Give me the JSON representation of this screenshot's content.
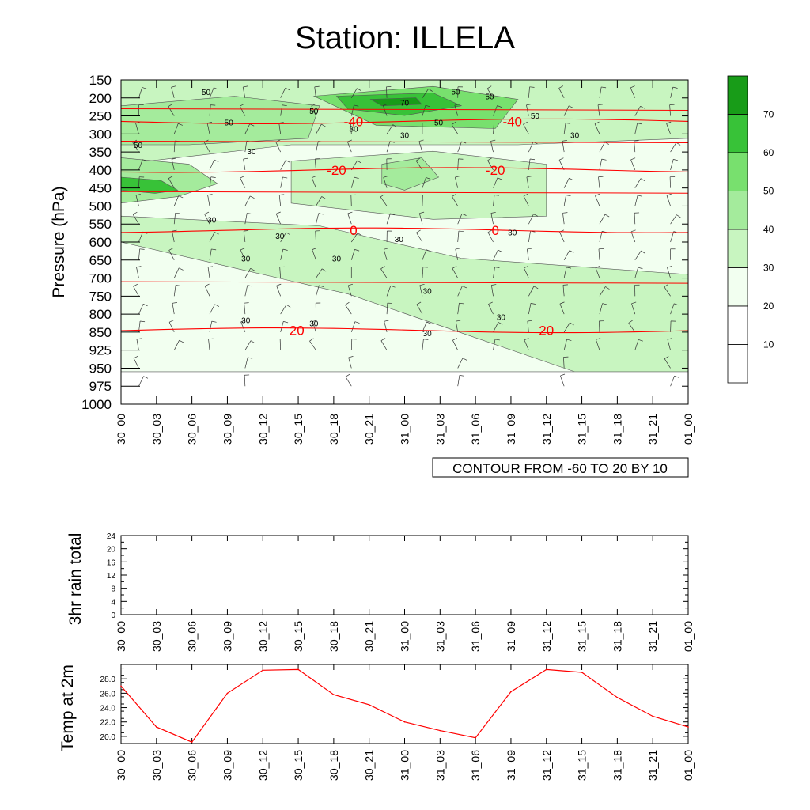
{
  "title": "Station: ILLELA",
  "time_labels": [
    "30_00",
    "30_03",
    "30_06",
    "30_09",
    "30_12",
    "30_15",
    "30_18",
    "30_21",
    "31_00",
    "31_03",
    "31_06",
    "31_09",
    "31_12",
    "31_15",
    "31_18",
    "31_21",
    "01_00"
  ],
  "colors": {
    "greens": [
      "#ffffff",
      "#f2fff0",
      "#c8f5c0",
      "#a4eb9c",
      "#78e06e",
      "#38c238",
      "#189c18"
    ],
    "temp_line": "#ff0000",
    "frame": "#000000"
  },
  "chart_data": [
    {
      "type": "heatmap",
      "name": "upper",
      "ylabel": "Pressure (hPa)",
      "yticks": [
        "150",
        "200",
        "250",
        "300",
        "350",
        "400",
        "450",
        "500",
        "550",
        "600",
        "650",
        "700",
        "750",
        "800",
        "850",
        "925",
        "950",
        "975",
        "1000"
      ],
      "xticks": [
        "30_00",
        "30_03",
        "30_06",
        "30_09",
        "30_12",
        "30_15",
        "30_18",
        "30_21",
        "31_00",
        "31_03",
        "31_06",
        "31_09",
        "31_12",
        "31_15",
        "31_18",
        "31_21",
        "01_00"
      ],
      "colorbar": {
        "labels": [
          "10",
          "20",
          "30",
          "40",
          "50",
          "60",
          "70"
        ],
        "levels": [
          0,
          10,
          20,
          30,
          40,
          50,
          60,
          70,
          80
        ]
      },
      "info_box": "CONTOUR FROM -60 TO 20 BY 10",
      "temperature_contours": [
        {
          "label": "-40",
          "level_index": 2.3,
          "label_positions": [
            0.41,
            0.69
          ]
        },
        {
          "label": "-20",
          "level_index": 5.0,
          "label_positions": [
            0.38,
            0.66
          ]
        },
        {
          "label": "0",
          "level_index": 8.35,
          "label_positions": [
            0.41,
            0.66
          ]
        },
        {
          "label": "20",
          "level_index": 13.9,
          "label_positions": [
            0.31,
            0.75
          ]
        }
      ],
      "wind_contour_labels": [
        "50",
        "50",
        "50",
        "50",
        "50",
        "50",
        "50",
        "50",
        "70",
        "30",
        "30",
        "30",
        "30",
        "30",
        "30",
        "30",
        "30",
        "30",
        "30",
        "30",
        "30",
        "30",
        "30",
        "30"
      ]
    },
    {
      "type": "bar",
      "name": "rain",
      "ylabel": "3hr rain total",
      "yticks": [
        "0",
        "4",
        "8",
        "12",
        "16",
        "20",
        "24"
      ],
      "ylim": [
        0,
        24
      ],
      "categories": [
        "30_00",
        "30_03",
        "30_06",
        "30_09",
        "30_12",
        "30_15",
        "30_18",
        "30_21",
        "31_00",
        "31_03",
        "31_06",
        "31_09",
        "31_12",
        "31_15",
        "31_18",
        "31_21",
        "01_00"
      ],
      "values": [
        0,
        0,
        0,
        0,
        0,
        0,
        0,
        0,
        0,
        0,
        0,
        0,
        0,
        0,
        0,
        0,
        0
      ]
    },
    {
      "type": "line",
      "name": "temp",
      "ylabel": "Temp at 2m",
      "yticks": [
        "20.0",
        "22.0",
        "24.0",
        "26.0",
        "28.0"
      ],
      "ylim": [
        19.0,
        30.0
      ],
      "categories": [
        "30_00",
        "30_03",
        "30_06",
        "30_09",
        "30_12",
        "30_15",
        "30_18",
        "30_21",
        "31_00",
        "31_03",
        "31_06",
        "31_09",
        "31_12",
        "31_15",
        "31_18",
        "31_21",
        "01_00"
      ],
      "values": [
        27.0,
        21.3,
        19.2,
        26.0,
        29.2,
        29.3,
        25.8,
        24.4,
        22.0,
        20.8,
        19.8,
        26.2,
        29.3,
        28.9,
        25.4,
        22.8,
        21.3
      ]
    }
  ]
}
